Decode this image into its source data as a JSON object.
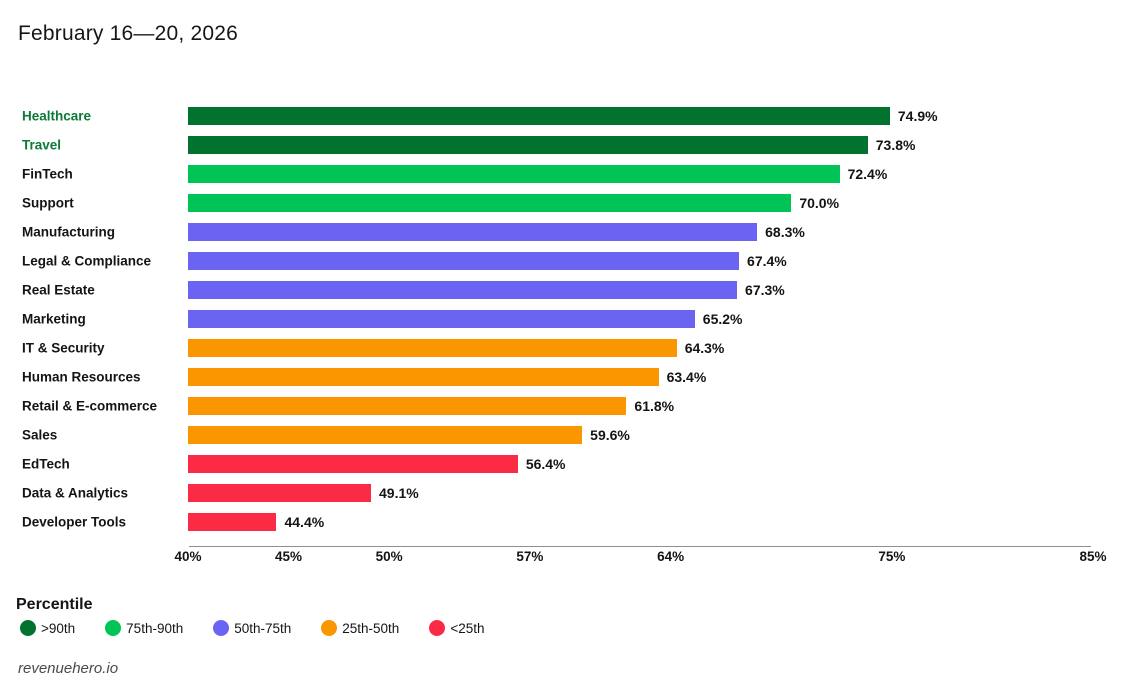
{
  "header": {
    "title": "February 16—20, 2026"
  },
  "chart_data": {
    "type": "bar",
    "orientation": "horizontal",
    "title": "February 16—20, 2026",
    "xlim": [
      40,
      85
    ],
    "x_tick_values": [
      40,
      45,
      50,
      57,
      64,
      75,
      85
    ],
    "x_tick_labels": [
      "40%",
      "45%",
      "50%",
      "57%",
      "64%",
      "75%",
      "85%"
    ],
    "grid": false,
    "rows": [
      {
        "label": "Healthcare",
        "value": 74.9,
        "display": "74.9%",
        "percentile": ">90th",
        "label_highlight": true
      },
      {
        "label": "Travel",
        "value": 73.8,
        "display": "73.8%",
        "percentile": ">90th",
        "label_highlight": true
      },
      {
        "label": "FinTech",
        "value": 72.4,
        "display": "72.4%",
        "percentile": "75th-90th",
        "label_highlight": false
      },
      {
        "label": "Support",
        "value": 70.0,
        "display": "70.0%",
        "percentile": "75th-90th",
        "label_highlight": false
      },
      {
        "label": "Manufacturing",
        "value": 68.3,
        "display": "68.3%",
        "percentile": "50th-75th",
        "label_highlight": false
      },
      {
        "label": "Legal & Compliance",
        "value": 67.4,
        "display": "67.4%",
        "percentile": "50th-75th",
        "label_highlight": false
      },
      {
        "label": "Real Estate",
        "value": 67.3,
        "display": "67.3%",
        "percentile": "50th-75th",
        "label_highlight": false
      },
      {
        "label": "Marketing",
        "value": 65.2,
        "display": "65.2%",
        "percentile": "50th-75th",
        "label_highlight": false
      },
      {
        "label": "IT & Security",
        "value": 64.3,
        "display": "64.3%",
        "percentile": "25th-50th",
        "label_highlight": false
      },
      {
        "label": "Human Resources",
        "value": 63.4,
        "display": "63.4%",
        "percentile": "25th-50th",
        "label_highlight": false
      },
      {
        "label": "Retail & E-commerce",
        "value": 61.8,
        "display": "61.8%",
        "percentile": "25th-50th",
        "label_highlight": false
      },
      {
        "label": "Sales",
        "value": 59.6,
        "display": "59.6%",
        "percentile": "25th-50th",
        "label_highlight": false
      },
      {
        "label": "EdTech",
        "value": 56.4,
        "display": "56.4%",
        "percentile": "<25th",
        "label_highlight": false
      },
      {
        "label": "Data & Analytics",
        "value": 49.1,
        "display": "49.1%",
        "percentile": "<25th",
        "label_highlight": false
      },
      {
        "label": "Developer Tools",
        "value": 44.4,
        "display": "44.4%",
        "percentile": "<25th",
        "label_highlight": false
      }
    ]
  },
  "colors": {
    "category_green_text": "#0B7A38",
    "axis_line": "#8F8F8F"
  },
  "legend": {
    "title": "Percentile",
    "items": [
      {
        "label": ">90th",
        "color": "#02722F"
      },
      {
        "label": "75th-90th",
        "color": "#00C455"
      },
      {
        "label": "50th-75th",
        "color": "#6B64F2"
      },
      {
        "label": "25th-50th",
        "color": "#FA9600"
      },
      {
        "label": "<25th",
        "color": "#FB2B45"
      }
    ]
  },
  "footer": {
    "text": "revenuehero.io"
  }
}
